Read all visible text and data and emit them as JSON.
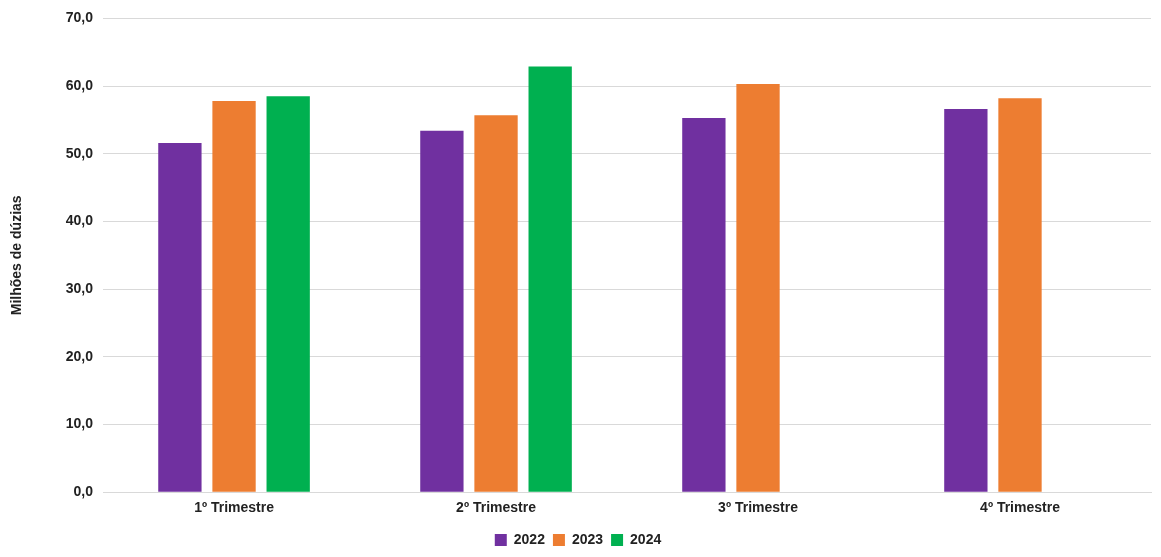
{
  "chart_data": {
    "type": "bar",
    "ylabel": "Milhões de dúzias",
    "categories": [
      "1º Trimestre",
      "2º Trimestre",
      "3º Trimestre",
      "4º Trimestre"
    ],
    "series": [
      {
        "name": "2022",
        "color": "#7030a0",
        "values": [
          51.6,
          53.4,
          55.3,
          56.6
        ]
      },
      {
        "name": "2023",
        "color": "#ed7d31",
        "values": [
          57.8,
          55.7,
          60.3,
          58.2
        ]
      },
      {
        "name": "2024",
        "color": "#00b050",
        "values": [
          58.5,
          62.9,
          null,
          null
        ]
      }
    ],
    "ylim": [
      0,
      70
    ],
    "yticks": [
      {
        "value": 0,
        "label": "0,0"
      },
      {
        "value": 10,
        "label": "10,0"
      },
      {
        "value": 20,
        "label": "20,0"
      },
      {
        "value": 30,
        "label": "30,0"
      },
      {
        "value": 40,
        "label": "40,0"
      },
      {
        "value": 50,
        "label": "50,0"
      },
      {
        "value": 60,
        "label": "60,0"
      },
      {
        "value": 70,
        "label": "70,0"
      }
    ],
    "grid": "y",
    "legend": "bottom"
  }
}
